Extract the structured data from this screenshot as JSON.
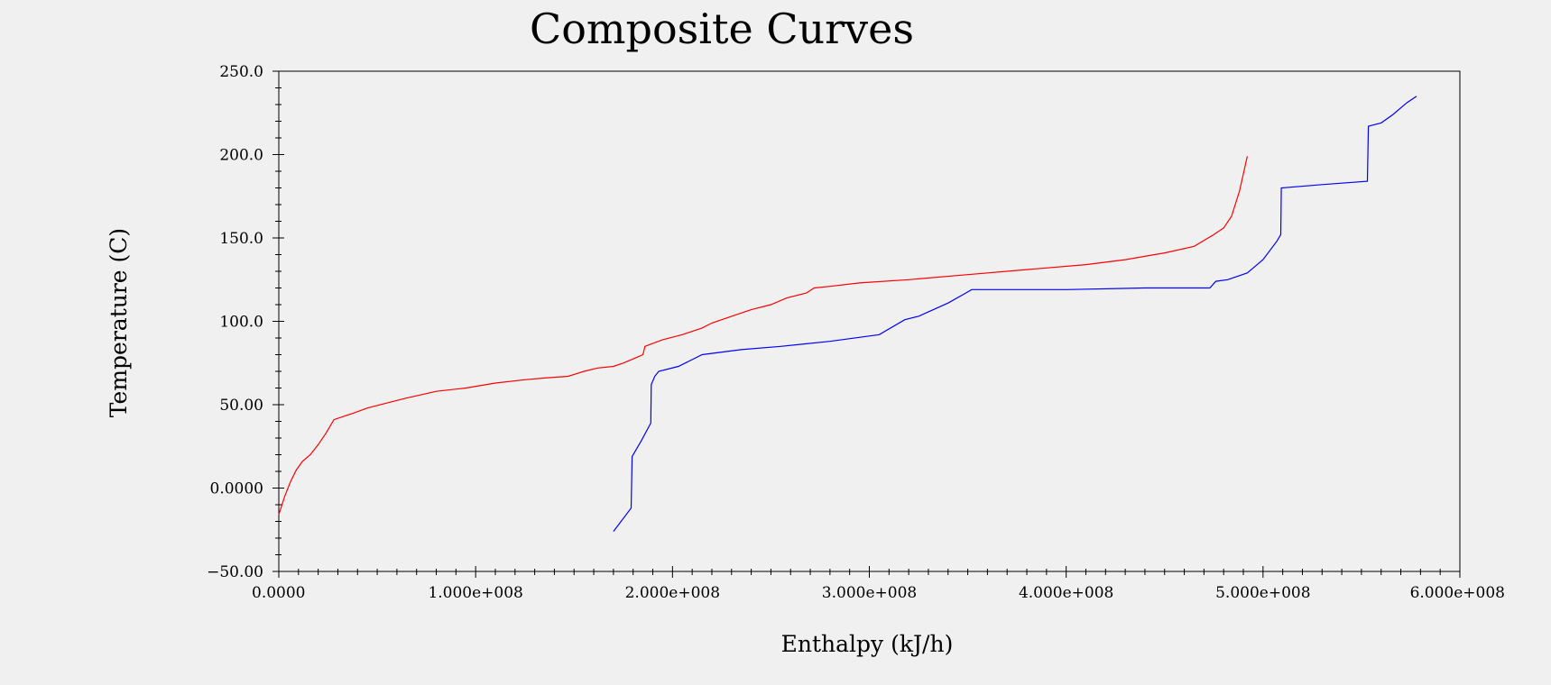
{
  "chart_data": {
    "type": "line",
    "title": "Composite Curves",
    "xlabel": "Enthalpy (kJ/h)",
    "ylabel": "Temperature (C)",
    "xlim": [
      0,
      600000000
    ],
    "ylim": [
      -50,
      250
    ],
    "grid": false,
    "legend": "none",
    "x_tick_labels": [
      "0.0000",
      "1.000e+008",
      "2.000e+008",
      "3.000e+008",
      "4.000e+008",
      "5.000e+008",
      "6.000e+008"
    ],
    "x_tick_values": [
      0,
      100000000,
      200000000,
      300000000,
      400000000,
      500000000,
      600000000
    ],
    "y_tick_labels": [
      "250.0",
      "200.0",
      "150.0",
      "100.0",
      "50.00",
      "0.0000",
      "−50.00"
    ],
    "y_tick_values": [
      250,
      200,
      150,
      100,
      50,
      0,
      -50
    ],
    "series": [
      {
        "color": "#ff0000",
        "points": [
          [
            0,
            -16
          ],
          [
            3000000,
            -5
          ],
          [
            6000000,
            4
          ],
          [
            9000000,
            11
          ],
          [
            12000000,
            16
          ],
          [
            16000000,
            20
          ],
          [
            20000000,
            26
          ],
          [
            24000000,
            33
          ],
          [
            28000000,
            41
          ],
          [
            33000000,
            43
          ],
          [
            38000000,
            45
          ],
          [
            45000000,
            48
          ],
          [
            55000000,
            51
          ],
          [
            65000000,
            54
          ],
          [
            80000000,
            58
          ],
          [
            95000000,
            60
          ],
          [
            110000000,
            63
          ],
          [
            125000000,
            65
          ],
          [
            135000000,
            66
          ],
          [
            147000000,
            67
          ],
          [
            155000000,
            70
          ],
          [
            162000000,
            72
          ],
          [
            170000000,
            73
          ],
          [
            175000000,
            75
          ],
          [
            183000000,
            79
          ],
          [
            185000000,
            80
          ],
          [
            186000000,
            85
          ],
          [
            195000000,
            89
          ],
          [
            205000000,
            92
          ],
          [
            215000000,
            96
          ],
          [
            220000000,
            99
          ],
          [
            230000000,
            103
          ],
          [
            240000000,
            107
          ],
          [
            250000000,
            110
          ],
          [
            258000000,
            114
          ],
          [
            268000000,
            117
          ],
          [
            272000000,
            120
          ],
          [
            280000000,
            121
          ],
          [
            295000000,
            123
          ],
          [
            320000000,
            125
          ],
          [
            350000000,
            128
          ],
          [
            380000000,
            131
          ],
          [
            410000000,
            134
          ],
          [
            430000000,
            137
          ],
          [
            450000000,
            141
          ],
          [
            465000000,
            145
          ],
          [
            475000000,
            152
          ],
          [
            480000000,
            156
          ],
          [
            484000000,
            163
          ],
          [
            488000000,
            178
          ],
          [
            492000000,
            199
          ]
        ]
      },
      {
        "color": "#0000ff",
        "points": [
          [
            170000000,
            -26
          ],
          [
            179000000,
            -12
          ],
          [
            179500000,
            19
          ],
          [
            184000000,
            28
          ],
          [
            189000000,
            39
          ],
          [
            189200000,
            62
          ],
          [
            191000000,
            67
          ],
          [
            193000000,
            70
          ],
          [
            203000000,
            73
          ],
          [
            210000000,
            77
          ],
          [
            215000000,
            80
          ],
          [
            235000000,
            83
          ],
          [
            255000000,
            85
          ],
          [
            280000000,
            88
          ],
          [
            305000000,
            92
          ],
          [
            318000000,
            101
          ],
          [
            325000000,
            103
          ],
          [
            340000000,
            111
          ],
          [
            349000000,
            117
          ],
          [
            352000000,
            119
          ],
          [
            400000000,
            119
          ],
          [
            440000000,
            120
          ],
          [
            473000000,
            120
          ],
          [
            476000000,
            124
          ],
          [
            482000000,
            125
          ],
          [
            492000000,
            129
          ],
          [
            500000000,
            137
          ],
          [
            507000000,
            148
          ],
          [
            509000000,
            152
          ],
          [
            509300000,
            180
          ],
          [
            530000000,
            182
          ],
          [
            553000000,
            184
          ],
          [
            553500000,
            217
          ],
          [
            560000000,
            219
          ],
          [
            566000000,
            224
          ],
          [
            573000000,
            231
          ],
          [
            578000000,
            235
          ]
        ]
      }
    ]
  }
}
